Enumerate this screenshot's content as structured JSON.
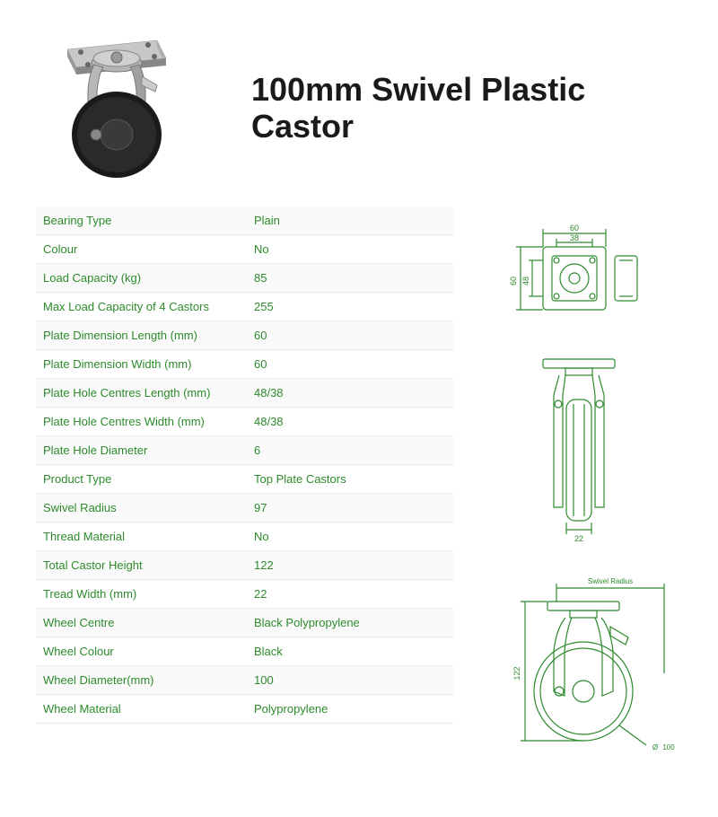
{
  "title": "100mm Swivel Plastic Castor",
  "specs": [
    {
      "label": "Bearing Type",
      "value": "Plain"
    },
    {
      "label": "Colour",
      "value": "No"
    },
    {
      "label": "Load Capacity (kg)",
      "value": "85"
    },
    {
      "label": "Max Load Capacity of 4 Castors",
      "value": "255"
    },
    {
      "label": "Plate Dimension Length (mm)",
      "value": "60"
    },
    {
      "label": "Plate Dimension Width (mm)",
      "value": "60"
    },
    {
      "label": "Plate Hole Centres Length (mm)",
      "value": "48/38"
    },
    {
      "label": "Plate Hole Centres Width (mm)",
      "value": "48/38"
    },
    {
      "label": "Plate Hole Diameter",
      "value": "6"
    },
    {
      "label": "Product Type",
      "value": "Top Plate Castors"
    },
    {
      "label": "Swivel Radius",
      "value": "97"
    },
    {
      "label": "Thread Material",
      "value": "No"
    },
    {
      "label": "Total Castor Height",
      "value": "122"
    },
    {
      "label": "Tread Width (mm)",
      "value": "22"
    },
    {
      "label": "Wheel Centre",
      "value": "Black Polypropylene"
    },
    {
      "label": "Wheel Colour",
      "value": "Black"
    },
    {
      "label": "Wheel Diameter(mm)",
      "value": "100"
    },
    {
      "label": "Wheel Material",
      "value": "Polypropylene"
    }
  ],
  "colors": {
    "spec_text": "#2d8a2d",
    "diagram_stroke": "#2d8a2d",
    "title_text": "#1a1a1a",
    "row_border": "#eaeaea"
  },
  "dimensions": {
    "plate_width": "60",
    "plate_inner": "38",
    "plate_height": "60",
    "plate_inner_h": "48",
    "tread": "22",
    "total_height": "122",
    "wheel_dia": "100",
    "swivel_radius_label": "Swivel Radius"
  }
}
